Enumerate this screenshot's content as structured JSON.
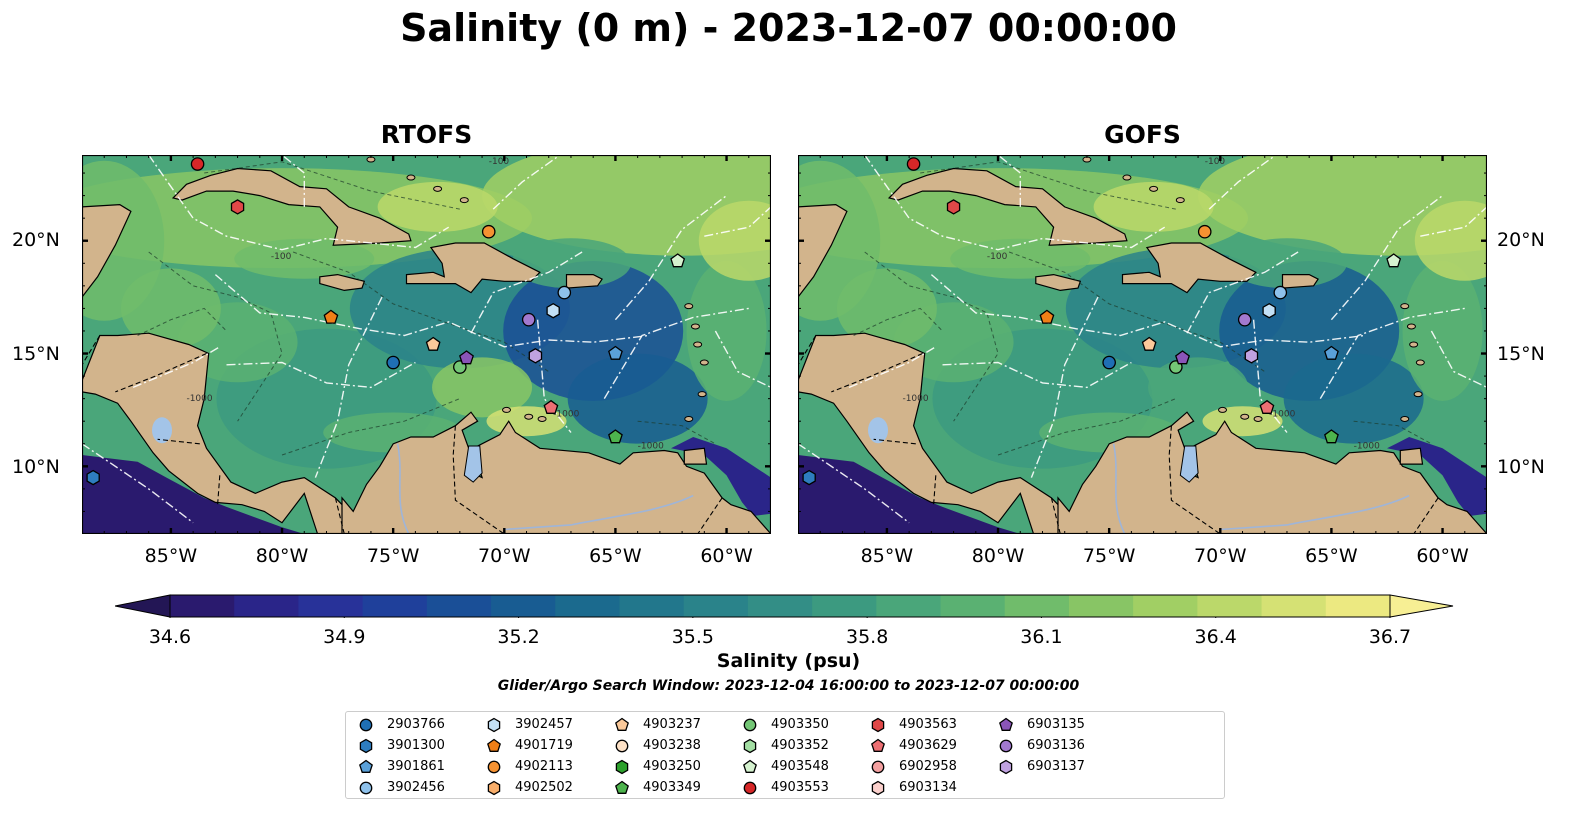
{
  "title": "Salinity (0 m) - 2023-12-07 00:00:00",
  "panels": [
    {
      "title": "RTOFS"
    },
    {
      "title": "GOFS"
    }
  ],
  "lon_ticks": [
    "85°W",
    "80°W",
    "75°W",
    "70°W",
    "65°W",
    "60°W"
  ],
  "lat_ticks": [
    "20°N",
    "15°N",
    "10°N"
  ],
  "colorbar": {
    "label": "Salinity (psu)",
    "ticks": [
      "34.6",
      "34.9",
      "35.2",
      "35.5",
      "35.8",
      "36.1",
      "36.4",
      "36.7"
    ],
    "colors": [
      "#2a1a6e",
      "#2a2589",
      "#283299",
      "#1f409b",
      "#1a4f97",
      "#185c92",
      "#1b6a8e",
      "#22778c",
      "#2a838a",
      "#338e86",
      "#3c9a80",
      "#4aa67a",
      "#5ab172",
      "#70bc6b",
      "#88c565",
      "#a1cf64",
      "#bbd86a",
      "#d5e174",
      "#ece981"
    ],
    "extend_low": "#231655",
    "extend_high": "#f7ef94"
  },
  "search_window": "Glider/Argo Search Window: 2023-12-04 16:00:00 to 2023-12-07 00:00:00",
  "contour_labels": [
    "-100",
    "-1000"
  ],
  "legend": [
    {
      "id": "2903766",
      "marker": "circle",
      "color": "#1f6fb4"
    },
    {
      "id": "3901300",
      "marker": "hexagon",
      "color": "#2e7dbf"
    },
    {
      "id": "3901861",
      "marker": "pentagon",
      "color": "#5aa0d8"
    },
    {
      "id": "3902456",
      "marker": "circle",
      "color": "#8ec1eb"
    },
    {
      "id": "3902457",
      "marker": "hexagon",
      "color": "#c3e0f5"
    },
    {
      "id": "4901719",
      "marker": "pentagon",
      "color": "#f07f17"
    },
    {
      "id": "4902113",
      "marker": "circle",
      "color": "#f59232"
    },
    {
      "id": "4902502",
      "marker": "hexagon",
      "color": "#f8ae6b"
    },
    {
      "id": "4903237",
      "marker": "pentagon",
      "color": "#fbc99a"
    },
    {
      "id": "4903238",
      "marker": "circle",
      "color": "#fde1c6"
    },
    {
      "id": "4903250",
      "marker": "hexagon",
      "color": "#2ca02c"
    },
    {
      "id": "4903349",
      "marker": "pentagon",
      "color": "#4db34d"
    },
    {
      "id": "4903350",
      "marker": "circle",
      "color": "#74c776"
    },
    {
      "id": "4903352",
      "marker": "hexagon",
      "color": "#a3dea3"
    },
    {
      "id": "4903548",
      "marker": "pentagon",
      "color": "#d5f2cf"
    },
    {
      "id": "4903553",
      "marker": "circle",
      "color": "#d62728"
    },
    {
      "id": "4903563",
      "marker": "hexagon",
      "color": "#e04848"
    },
    {
      "id": "4903629",
      "marker": "pentagon",
      "color": "#ec6f73"
    },
    {
      "id": "6902958",
      "marker": "circle",
      "color": "#f3a0a0"
    },
    {
      "id": "6903134",
      "marker": "hexagon",
      "color": "#fbd0cc"
    },
    {
      "id": "6903135",
      "marker": "pentagon",
      "color": "#8a55b8"
    },
    {
      "id": "6903136",
      "marker": "circle",
      "color": "#a279cf"
    },
    {
      "id": "6903137",
      "marker": "hexagon",
      "color": "#c0a2e0"
    }
  ],
  "floats": [
    {
      "id": "2903766",
      "lon": -75.0,
      "lat": 14.6
    },
    {
      "id": "3901300",
      "lon": -88.5,
      "lat": 9.5
    },
    {
      "id": "3901861",
      "lon": -65.0,
      "lat": 15.0
    },
    {
      "id": "3902456",
      "lon": -67.3,
      "lat": 17.7
    },
    {
      "id": "3902457",
      "lon": -67.8,
      "lat": 16.9
    },
    {
      "id": "4901719",
      "lon": -77.8,
      "lat": 16.6
    },
    {
      "id": "4902113",
      "lon": -70.7,
      "lat": 20.4
    },
    {
      "id": "4903237",
      "lon": -73.2,
      "lat": 15.4
    },
    {
      "id": "4903349",
      "lon": -65.0,
      "lat": 11.3
    },
    {
      "id": "4903350",
      "lon": -72.0,
      "lat": 14.4
    },
    {
      "id": "4903548",
      "lon": -62.2,
      "lat": 19.1
    },
    {
      "id": "4903553",
      "lon": -83.8,
      "lat": 23.4
    },
    {
      "id": "4903563",
      "lon": -82.0,
      "lat": 21.5
    },
    {
      "id": "4903629",
      "lon": -67.9,
      "lat": 12.6
    },
    {
      "id": "6903135",
      "lon": -71.7,
      "lat": 14.8
    },
    {
      "id": "6903136",
      "lon": -68.9,
      "lat": 16.5
    },
    {
      "id": "6903137",
      "lon": -68.6,
      "lat": 14.9
    }
  ],
  "map_extent": {
    "lon": [
      -89,
      -58
    ],
    "lat": [
      7,
      23.8
    ]
  },
  "land_color": "#d2b48c",
  "lake_color": "#a3c4e8"
}
